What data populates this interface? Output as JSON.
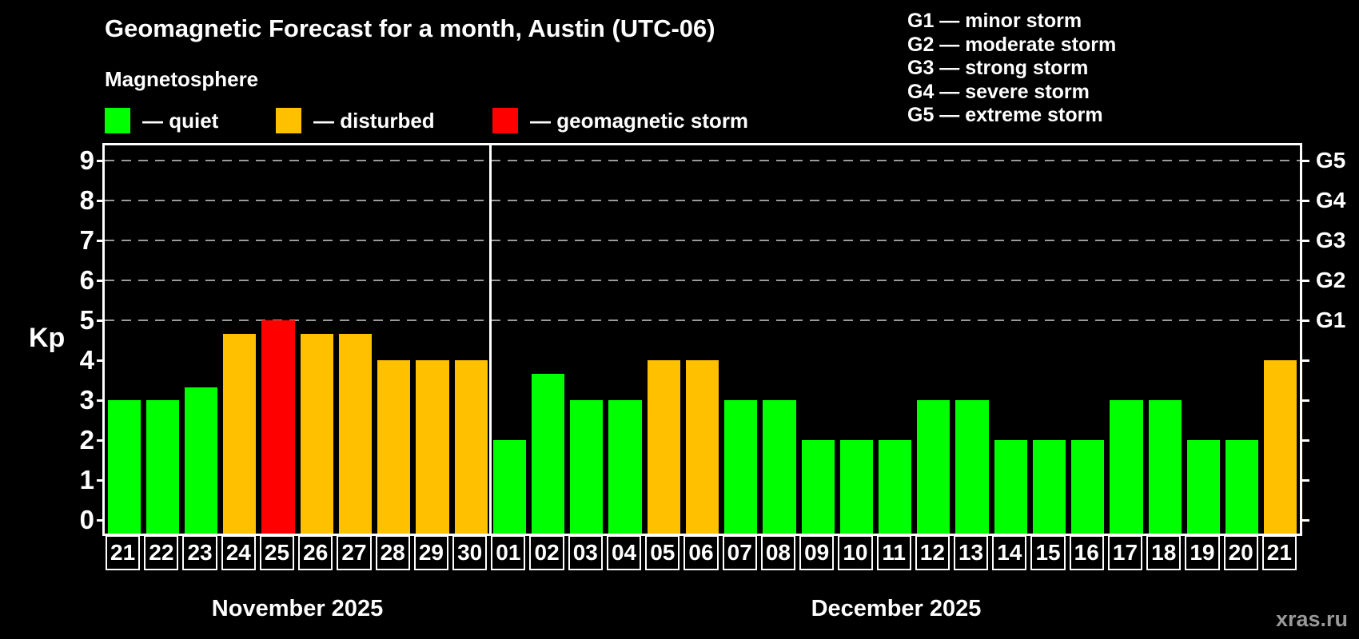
{
  "header": {
    "title": "Geomagnetic Forecast for a month, Austin (UTC-06)",
    "subtitle": "Magnetosphere"
  },
  "legend": [
    {
      "name": "quiet",
      "label": "— quiet",
      "color": "#00ff00"
    },
    {
      "name": "disturbed",
      "label": "— disturbed",
      "color": "#ffc000"
    },
    {
      "name": "storm",
      "label": "— geomagnetic storm",
      "color": "#ff0000"
    }
  ],
  "g_legend": [
    "G1 — minor storm",
    "G2 — moderate storm",
    "G3 — strong storm",
    "G4 — severe storm",
    "G5 — extreme storm"
  ],
  "watermark": "xras.ru",
  "chart_data": {
    "type": "bar",
    "title": "Geomagnetic Forecast for a month, Austin (UTC-06)",
    "ylabel": "Kp",
    "ylim": [
      -0.35,
      9.4
    ],
    "yticks": [
      0,
      1,
      2,
      3,
      4,
      5,
      6,
      7,
      8,
      9
    ],
    "grid_levels": [
      5,
      6,
      7,
      8,
      9
    ],
    "right_axis": [
      {
        "kp": 5,
        "label": "G1"
      },
      {
        "kp": 6,
        "label": "G2"
      },
      {
        "kp": 7,
        "label": "G3"
      },
      {
        "kp": 8,
        "label": "G4"
      },
      {
        "kp": 9,
        "label": "G5"
      }
    ],
    "color_map": {
      "quiet": "#00ff00",
      "disturbed": "#ffc000",
      "storm": "#ff0000"
    },
    "legend_position": "top-left",
    "grid": "dashed horizontal at G-storm levels only",
    "months": [
      {
        "label": "November 2025",
        "days": [
          {
            "day": "21",
            "kp": 3,
            "state": "quiet"
          },
          {
            "day": "22",
            "kp": 3,
            "state": "quiet"
          },
          {
            "day": "23",
            "kp": 3.33,
            "state": "quiet"
          },
          {
            "day": "24",
            "kp": 4.67,
            "state": "disturbed"
          },
          {
            "day": "25",
            "kp": 5,
            "state": "storm"
          },
          {
            "day": "26",
            "kp": 4.67,
            "state": "disturbed"
          },
          {
            "day": "27",
            "kp": 4.67,
            "state": "disturbed"
          },
          {
            "day": "28",
            "kp": 4,
            "state": "disturbed"
          },
          {
            "day": "29",
            "kp": 4,
            "state": "disturbed"
          },
          {
            "day": "30",
            "kp": 4,
            "state": "disturbed"
          }
        ]
      },
      {
        "label": "December 2025",
        "days": [
          {
            "day": "01",
            "kp": 2,
            "state": "quiet"
          },
          {
            "day": "02",
            "kp": 3.67,
            "state": "quiet"
          },
          {
            "day": "03",
            "kp": 3,
            "state": "quiet"
          },
          {
            "day": "04",
            "kp": 3,
            "state": "quiet"
          },
          {
            "day": "05",
            "kp": 4,
            "state": "disturbed"
          },
          {
            "day": "06",
            "kp": 4,
            "state": "disturbed"
          },
          {
            "day": "07",
            "kp": 3,
            "state": "quiet"
          },
          {
            "day": "08",
            "kp": 3,
            "state": "quiet"
          },
          {
            "day": "09",
            "kp": 2,
            "state": "quiet"
          },
          {
            "day": "10",
            "kp": 2,
            "state": "quiet"
          },
          {
            "day": "11",
            "kp": 2,
            "state": "quiet"
          },
          {
            "day": "12",
            "kp": 3,
            "state": "quiet"
          },
          {
            "day": "13",
            "kp": 3,
            "state": "quiet"
          },
          {
            "day": "14",
            "kp": 2,
            "state": "quiet"
          },
          {
            "day": "15",
            "kp": 2,
            "state": "quiet"
          },
          {
            "day": "16",
            "kp": 2,
            "state": "quiet"
          },
          {
            "day": "17",
            "kp": 3,
            "state": "quiet"
          },
          {
            "day": "18",
            "kp": 3,
            "state": "quiet"
          },
          {
            "day": "19",
            "kp": 2,
            "state": "quiet"
          },
          {
            "day": "20",
            "kp": 2,
            "state": "quiet"
          },
          {
            "day": "21",
            "kp": 4,
            "state": "disturbed"
          }
        ]
      }
    ]
  }
}
